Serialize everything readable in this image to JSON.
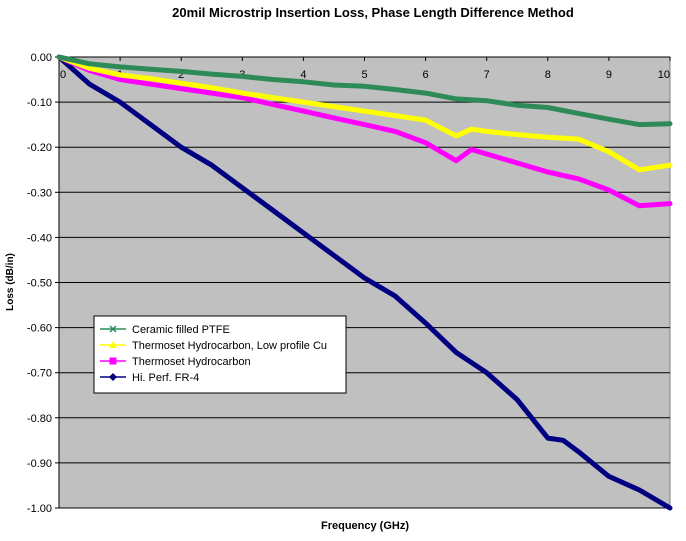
{
  "chart_data": {
    "type": "line",
    "title": "20mil Microstrip Insertion Loss, Phase Length Difference Method",
    "xlabel": "Frequency (GHz)",
    "ylabel": "Loss (dB/in)",
    "xlim": [
      0,
      10
    ],
    "ylim": [
      -1.0,
      0.0
    ],
    "x_ticks": [
      "0",
      "1",
      "2",
      "3",
      "4",
      "5",
      "6",
      "7",
      "8",
      "9",
      "10"
    ],
    "y_ticks": [
      "0.00",
      "-0.10",
      "-0.20",
      "-0.30",
      "-0.40",
      "-0.50",
      "-0.60",
      "-0.70",
      "-0.80",
      "-0.90",
      "-1.00"
    ],
    "grid": true,
    "legend_position": "lower-left",
    "plot_background": "#c0c0c0",
    "series": [
      {
        "name": "Ceramic filled PTFE",
        "color": "#2e8b57",
        "marker": "x",
        "x": [
          0,
          0.5,
          1,
          1.5,
          2,
          2.5,
          3,
          3.5,
          4,
          4.5,
          5,
          5.5,
          6,
          6.5,
          7,
          7.5,
          8,
          8.5,
          9,
          9.5,
          10
        ],
        "y": [
          0.0,
          -0.015,
          -0.022,
          -0.027,
          -0.032,
          -0.038,
          -0.043,
          -0.05,
          -0.055,
          -0.062,
          -0.065,
          -0.072,
          -0.08,
          -0.093,
          -0.097,
          -0.107,
          -0.112,
          -0.125,
          -0.138,
          -0.15,
          -0.148
        ]
      },
      {
        "name": "Thermoset Hydrocarbon, Low profile Cu",
        "color": "#ffff00",
        "marker": "triangle",
        "x": [
          0,
          0.5,
          1,
          1.5,
          2,
          2.5,
          3,
          3.5,
          4,
          4.5,
          5,
          5.5,
          6,
          6.5,
          6.75,
          7,
          7.5,
          8,
          8.5,
          9,
          9.5,
          10
        ],
        "y": [
          0.0,
          -0.025,
          -0.04,
          -0.048,
          -0.058,
          -0.068,
          -0.08,
          -0.09,
          -0.1,
          -0.11,
          -0.12,
          -0.13,
          -0.14,
          -0.175,
          -0.16,
          -0.165,
          -0.172,
          -0.178,
          -0.182,
          -0.21,
          -0.25,
          -0.24
        ]
      },
      {
        "name": "Thermoset Hydrocarbon",
        "color": "#ff00ff",
        "marker": "square",
        "x": [
          0,
          0.5,
          1,
          1.5,
          2,
          2.5,
          3,
          3.5,
          4,
          4.5,
          5,
          5.5,
          6,
          6.5,
          6.75,
          7,
          7.5,
          8,
          8.5,
          9,
          9.5,
          10
        ],
        "y": [
          0.0,
          -0.03,
          -0.05,
          -0.06,
          -0.07,
          -0.08,
          -0.09,
          -0.105,
          -0.12,
          -0.135,
          -0.15,
          -0.165,
          -0.19,
          -0.23,
          -0.205,
          -0.215,
          -0.235,
          -0.255,
          -0.27,
          -0.295,
          -0.33,
          -0.325
        ]
      },
      {
        "name": "Hi. Perf. FR-4",
        "color": "#000080",
        "marker": "diamond",
        "x": [
          0,
          0.5,
          1,
          1.5,
          2,
          2.5,
          3,
          3.5,
          4,
          4.5,
          5,
          5.5,
          6,
          6.5,
          7,
          7.5,
          8,
          8.25,
          8.5,
          9,
          9.5,
          10
        ],
        "y": [
          0.0,
          -0.06,
          -0.1,
          -0.15,
          -0.2,
          -0.24,
          -0.29,
          -0.34,
          -0.39,
          -0.44,
          -0.49,
          -0.53,
          -0.59,
          -0.655,
          -0.7,
          -0.76,
          -0.845,
          -0.85,
          -0.875,
          -0.93,
          -0.96,
          -1.0
        ]
      }
    ]
  }
}
